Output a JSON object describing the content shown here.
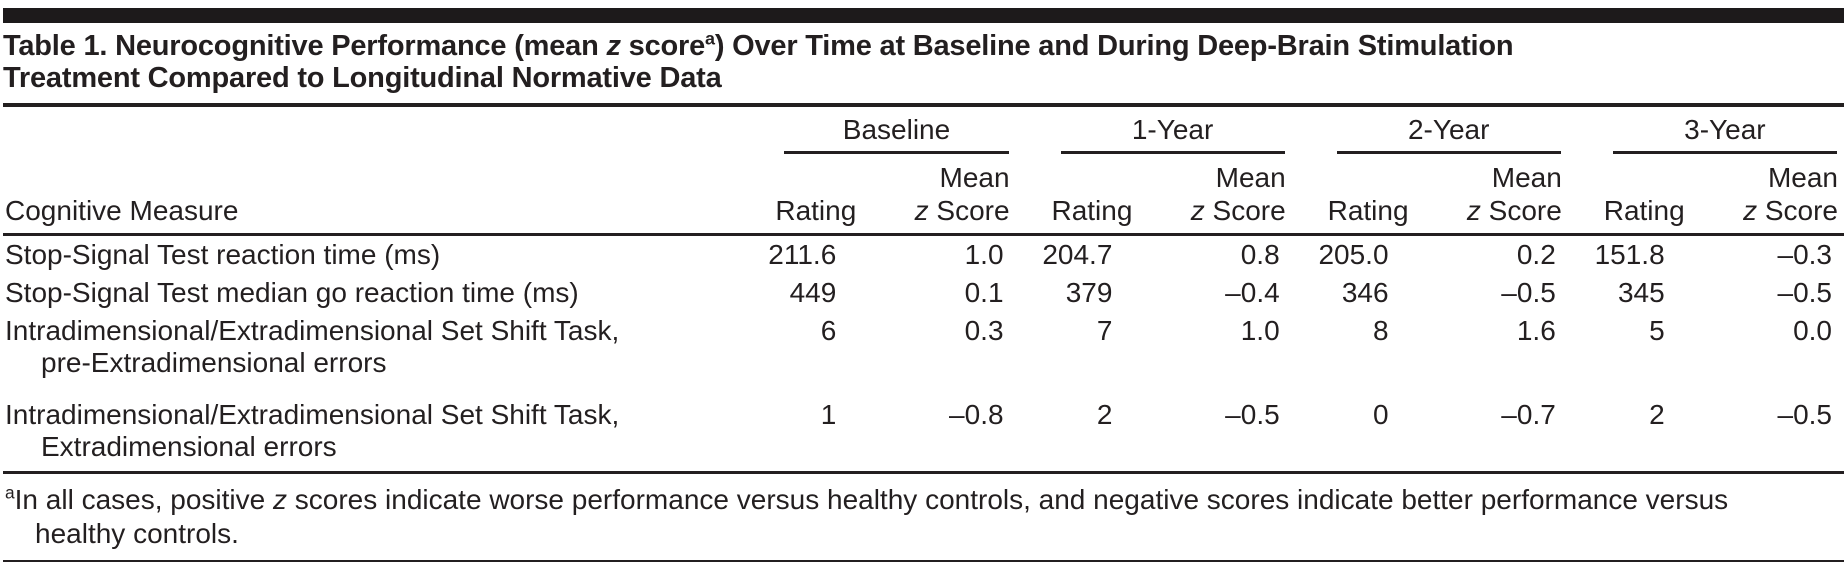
{
  "title": {
    "line1_pre": "Table 1. Neurocognitive Performance (mean ",
    "line1_z": "z",
    "line1_mid": " score",
    "line1_sup": "a",
    "line1_post": ") Over Time at Baseline and During Deep-Brain Stimulation",
    "line2": "Treatment Compared to Longitudinal Normative Data"
  },
  "columns": {
    "measure_label": "Cognitive Measure",
    "rating_label": "Rating",
    "mean_label": "Mean",
    "z_label": "z",
    "score_label": " Score",
    "groups": [
      {
        "label": "Baseline"
      },
      {
        "label": "1-Year"
      },
      {
        "label": "2-Year"
      },
      {
        "label": "3-Year"
      }
    ]
  },
  "rows": [
    {
      "label1": "Stop-Signal Test reaction time (ms)",
      "label2": "",
      "values": [
        "211.6",
        "1.0",
        "204.7",
        "0.8",
        "205.0",
        "0.2",
        "151.8",
        "–0.3"
      ]
    },
    {
      "label1": "Stop-Signal Test median go reaction time (ms)",
      "label2": "",
      "values": [
        "449",
        "0.1",
        "379",
        "–0.4",
        "346",
        "–0.5",
        "345",
        "–0.5"
      ]
    },
    {
      "label1": "Intradimensional/Extradimensional Set Shift Task,",
      "label2": "pre-Extradimensional errors",
      "values": [
        "6",
        "0.3",
        "7",
        "1.0",
        "8",
        "1.6",
        "5",
        "0.0"
      ]
    },
    {
      "label1": "Intradimensional/Extradimensional Set Shift Task,",
      "label2": "Extradimensional errors",
      "values": [
        "1",
        "–0.8",
        "2",
        "–0.5",
        "0",
        "–0.7",
        "2",
        "–0.5"
      ]
    }
  ],
  "footnote": {
    "sup": "a",
    "pre": "In all cases, positive ",
    "z": "z",
    "line1_rest": " scores indicate worse performance versus healthy controls, and negative scores indicate better performance versus",
    "line2": "healthy controls."
  },
  "colors": {
    "text": "#231f20",
    "rule": "#231f20",
    "top_bar": "#1d1a1b",
    "background": "#ffffff"
  }
}
